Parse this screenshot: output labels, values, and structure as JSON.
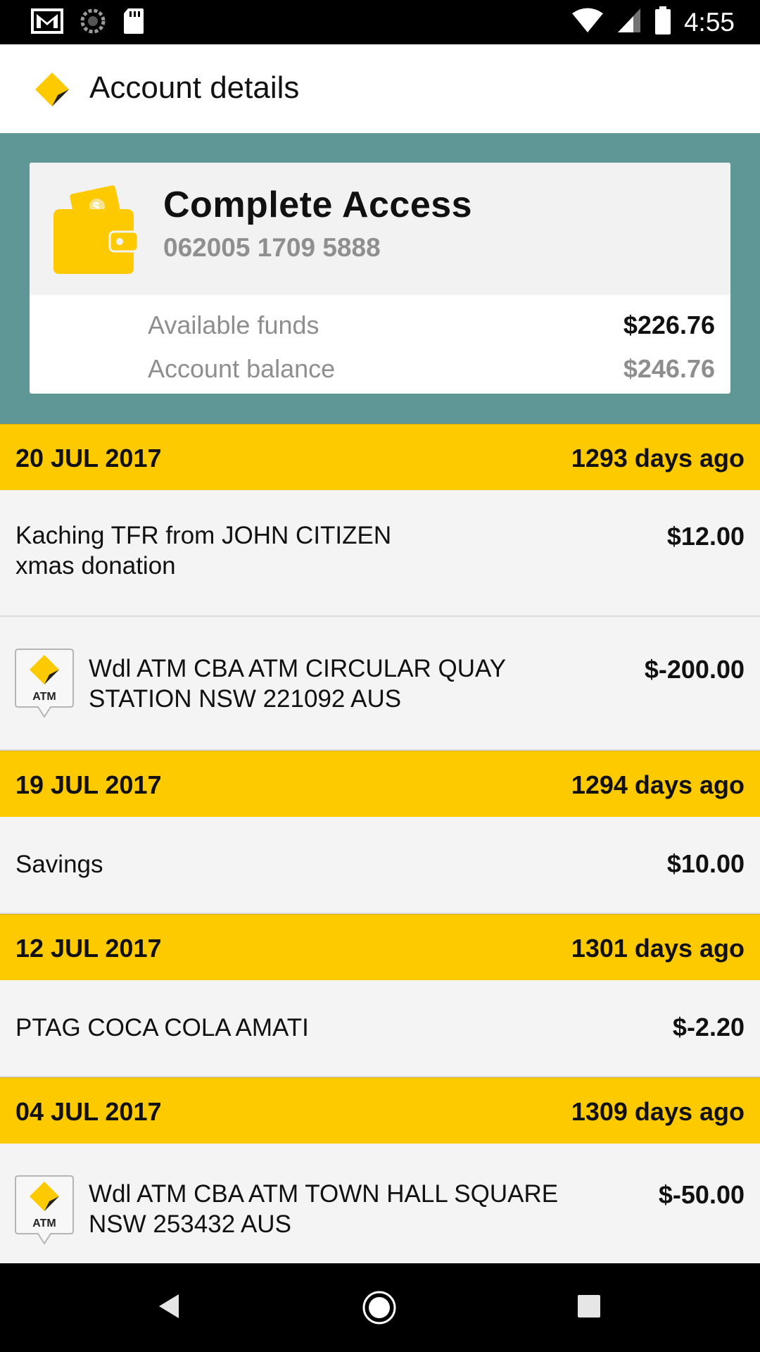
{
  "status_bar": {
    "time": "4:55",
    "left_icons": [
      "gmail-icon",
      "sync-icon",
      "sd-card-icon"
    ],
    "right_icons": [
      "wifi-icon",
      "cell-signal-icon",
      "battery-icon"
    ]
  },
  "app_bar": {
    "title": "Account details",
    "logo_icon": "commbank-logo-icon"
  },
  "account": {
    "name": "Complete Access",
    "number": "062005 1709 5888",
    "available_label": "Available funds",
    "available_value": "$226.76",
    "balance_label": "Account balance",
    "balance_value": "$246.76"
  },
  "groups": [
    {
      "date": "20 JUL 2017",
      "ago": "1293 days ago",
      "transactions": [
        {
          "line1": "Kaching TFR from JOHN CITIZEN",
          "line2": "xmas donation",
          "amount": "$12.00"
        },
        {
          "line1": "Wdl ATM CBA ATM CIRCULAR QUAY",
          "line2": "STATION NSW 221092 AUS",
          "amount": "$-200.00",
          "icon_label": "ATM"
        }
      ]
    },
    {
      "date": "19 JUL 2017",
      "ago": "1294 days ago",
      "transactions": [
        {
          "line1": "Savings",
          "amount": "$10.00"
        }
      ]
    },
    {
      "date": "12 JUL 2017",
      "ago": "1301 days ago",
      "transactions": [
        {
          "line1": "PTAG COCA COLA AMATI",
          "amount": "$-2.20"
        }
      ]
    },
    {
      "date": "04 JUL 2017",
      "ago": "1309 days ago",
      "transactions": [
        {
          "line1": "Wdl ATM CBA ATM TOWN HALL SQUARE",
          "line2": "NSW 253432 AUS",
          "amount": "$-50.00",
          "icon_label": "ATM"
        }
      ]
    }
  ],
  "nav_bar": {
    "buttons": [
      "back-icon",
      "home-icon",
      "recents-icon"
    ]
  },
  "colors": {
    "accent_yellow": "#fdca00",
    "panel_teal": "#5f9797",
    "secondary_text": "#8e8e8e"
  }
}
